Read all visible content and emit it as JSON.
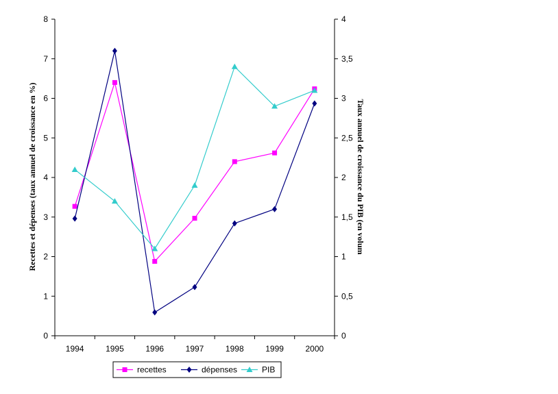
{
  "chart_data": {
    "type": "line",
    "categories": [
      "1994",
      "1995",
      "1996",
      "1997",
      "1998",
      "1999",
      "2000"
    ],
    "y_left": {
      "label": "Recettes et dépenses (taux annuel de croissance en %)",
      "range": [
        0,
        8
      ],
      "ticks": [
        "0",
        "1",
        "2",
        "3",
        "4",
        "5",
        "6",
        "7",
        "8"
      ]
    },
    "y_right": {
      "label": "Taux annuel de croissance du PIB (en volum",
      "range": [
        0,
        4
      ],
      "ticks": [
        "0",
        "0,5",
        "1",
        "1,5",
        "2",
        "2,5",
        "3",
        "3,5",
        "4"
      ]
    },
    "series": [
      {
        "name": "recettes",
        "axis": "left",
        "color": "#ff00ff",
        "marker": "square",
        "values": [
          3.27,
          6.4,
          1.88,
          2.97,
          4.4,
          4.62,
          6.24
        ]
      },
      {
        "name": "dépenses",
        "axis": "left",
        "color": "#000080",
        "marker": "diamond",
        "values": [
          2.96,
          7.2,
          0.59,
          1.23,
          2.84,
          3.2,
          5.87
        ]
      },
      {
        "name": "PIB",
        "axis": "right",
        "color": "#33cccc",
        "marker": "triangle",
        "values": [
          2.1,
          1.7,
          1.1,
          1.9,
          3.4,
          2.9,
          3.1
        ]
      }
    ],
    "grid": false,
    "legend_position": "bottom"
  }
}
